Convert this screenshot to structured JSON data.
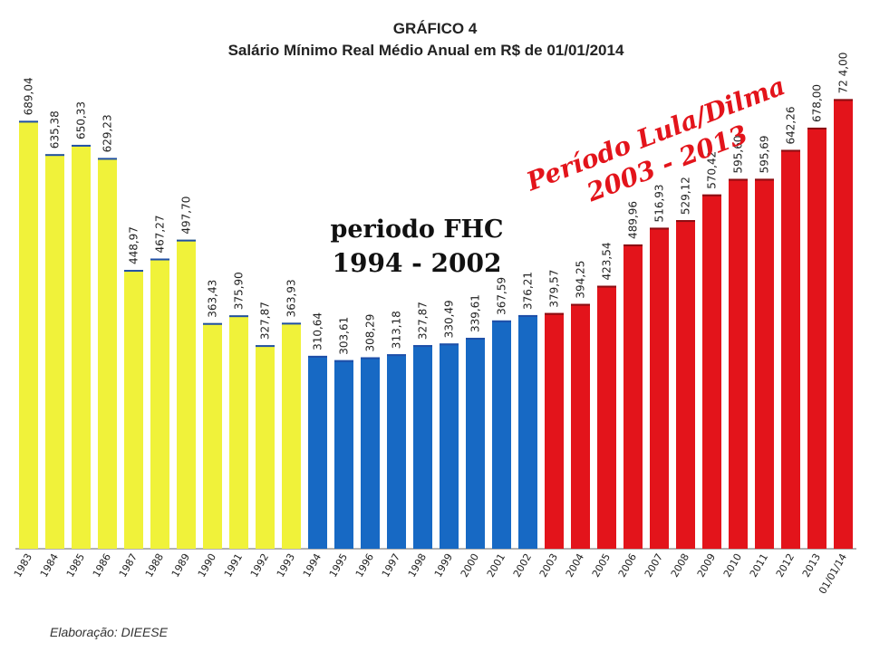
{
  "title": "GRÁFICO 4",
  "subtitle": "Salário Mínimo Real Médio Anual em R$ de 01/01/2014",
  "credit": "Elaboração: DIEESE",
  "annotations": {
    "fhc_line1": "periodo FHC",
    "fhc_line2": "1994 - 2002",
    "lula_line1": "Período Lula/Dilma",
    "lula_line2": "2003  -  2013"
  },
  "colors": {
    "pre1994": "#f0f23a",
    "fhc": "#1769c4",
    "lula_dilma": "#e3141b",
    "annotation_red": "#e3141b"
  },
  "chart_data": {
    "type": "bar",
    "title": "GRÁFICO 4",
    "subtitle": "Salário Mínimo Real Médio Anual em R$ de 01/01/2014",
    "xlabel": "",
    "ylabel": "",
    "ylim": [
      0,
      780
    ],
    "grid": false,
    "categories": [
      "1983",
      "1984",
      "1985",
      "1986",
      "1987",
      "1988",
      "1989",
      "1990",
      "1991",
      "1992",
      "1993",
      "1994",
      "1995",
      "1996",
      "1997",
      "1998",
      "1999",
      "2000",
      "2001",
      "2002",
      "2003",
      "2004",
      "2005",
      "2006",
      "2007",
      "2008",
      "2009",
      "2010",
      "2011",
      "2012",
      "2013",
      "01/01/14"
    ],
    "values": [
      689.04,
      635.38,
      650.33,
      629.23,
      448.97,
      467.27,
      497.7,
      363.43,
      375.9,
      327.87,
      363.93,
      310.64,
      303.61,
      308.29,
      313.18,
      327.87,
      330.49,
      339.61,
      367.59,
      376.21,
      379.57,
      394.25,
      423.54,
      489.96,
      516.93,
      529.12,
      570.42,
      595.6,
      595.69,
      642.26,
      678.0,
      724.0
    ],
    "value_labels": [
      "689,04",
      "635,38",
      "650,33",
      "629,23",
      "448,97",
      "467,27",
      "497,70",
      "363,43",
      "375,90",
      "327,87",
      "363,93",
      "310,64",
      "303,61",
      "308,29",
      "313,18",
      "327,87",
      "330,49",
      "339,61",
      "367,59",
      "376,21",
      "379,57",
      "394,25",
      "423,54",
      "489,96",
      "516,93",
      "529,12",
      "570,42",
      "595,60",
      "595,69",
      "642,26",
      "678,00",
      "72 4,00"
    ],
    "groups": [
      "pre1994",
      "pre1994",
      "pre1994",
      "pre1994",
      "pre1994",
      "pre1994",
      "pre1994",
      "pre1994",
      "pre1994",
      "pre1994",
      "pre1994",
      "fhc",
      "fhc",
      "fhc",
      "fhc",
      "fhc",
      "fhc",
      "fhc",
      "fhc",
      "fhc",
      "lula_dilma",
      "lula_dilma",
      "lula_dilma",
      "lula_dilma",
      "lula_dilma",
      "lula_dilma",
      "lula_dilma",
      "lula_dilma",
      "lula_dilma",
      "lula_dilma",
      "lula_dilma",
      "lula_dilma"
    ]
  }
}
